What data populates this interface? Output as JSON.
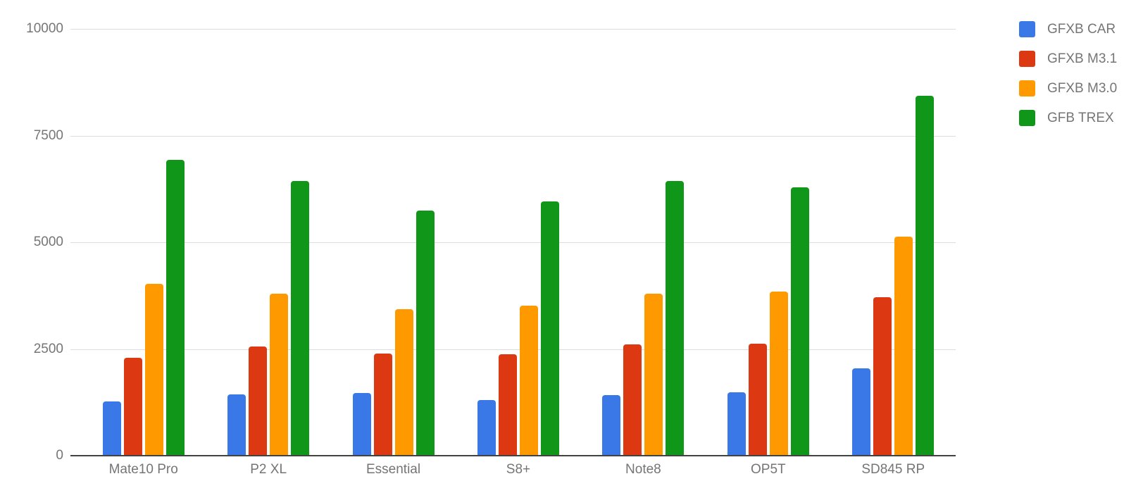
{
  "chart_data": {
    "type": "bar",
    "title": "",
    "xlabel": "",
    "ylabel": "",
    "categories": [
      "Mate10 Pro",
      "P2 XL",
      "Essential",
      "S8+",
      "Note8",
      "OP5T",
      "SD845 RP"
    ],
    "series": [
      {
        "name": "GFXB CAR",
        "color": "#3b78e7",
        "values": [
          1270,
          1440,
          1470,
          1310,
          1420,
          1490,
          2050
        ]
      },
      {
        "name": "GFXB M3.1",
        "color": "#dc3912",
        "values": [
          2290,
          2560,
          2400,
          2370,
          2600,
          2620,
          3720
        ]
      },
      {
        "name": "GFXB M3.0",
        "color": "#ff9900",
        "values": [
          4020,
          3790,
          3440,
          3510,
          3800,
          3840,
          5130
        ]
      },
      {
        "name": "GFB TREX",
        "color": "#109618",
        "values": [
          6930,
          6440,
          5740,
          5960,
          6440,
          6290,
          8430
        ]
      }
    ],
    "ylim": [
      0,
      10000
    ],
    "yticks": [
      0,
      2500,
      5000,
      7500,
      10000
    ],
    "grid": true,
    "legend_position": "right",
    "colors": {
      "axis_line": "#424242",
      "gridline": "#dcdcdc",
      "tick_text": "#757575",
      "background": "#ffffff"
    }
  }
}
